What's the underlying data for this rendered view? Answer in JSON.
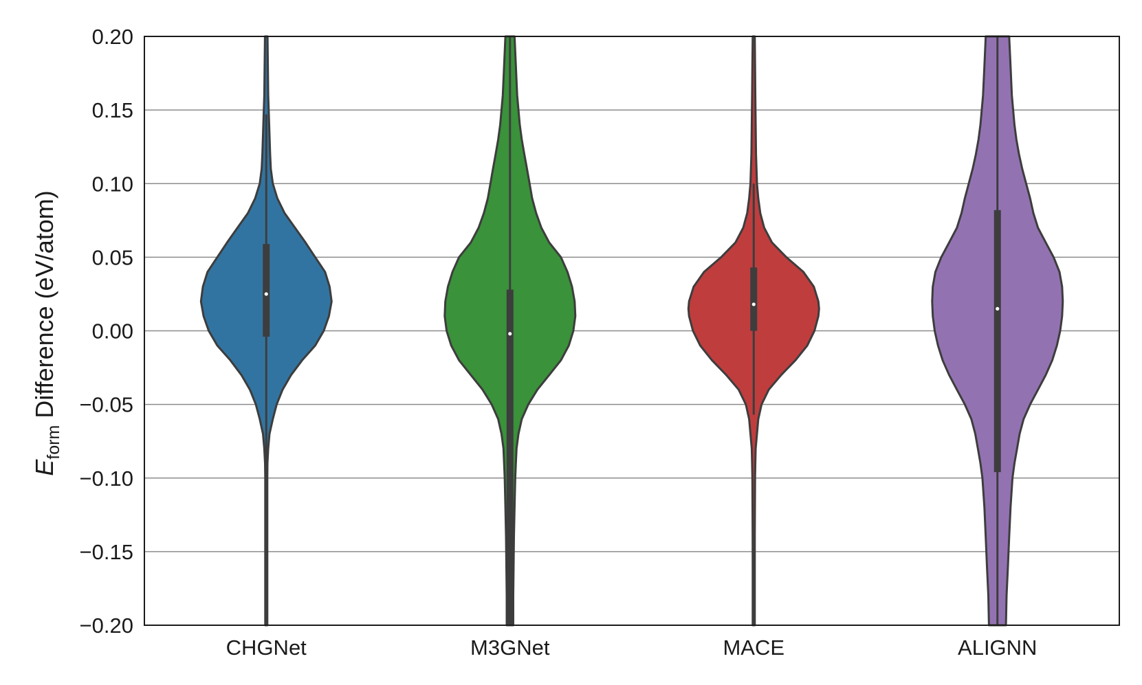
{
  "chart_data": {
    "type": "violin",
    "ylabel_main": "E",
    "ylabel_sub": "form",
    "ylabel_rest": " Difference (eV/atom)",
    "ylim": [
      -0.2,
      0.2
    ],
    "yticks": [
      -0.2,
      -0.15,
      -0.1,
      -0.05,
      0.0,
      0.05,
      0.1,
      0.15,
      0.2
    ],
    "ytick_labels": [
      "−0.20",
      "−0.15",
      "−0.10",
      "−0.05",
      "0.00",
      "0.05",
      "0.10",
      "0.15",
      "0.20"
    ],
    "grid": "horizontal",
    "categories": [
      "CHGNet",
      "M3GNet",
      "MACE",
      "ALIGNN"
    ],
    "series": [
      {
        "category": "CHGNet",
        "color": "#3274a1",
        "median": 0.025,
        "q1": -0.004,
        "q3": 0.059,
        "whisker_low": -0.2,
        "whisker_high": 0.147,
        "density": [
          [
            -0.2,
            0.004
          ],
          [
            -0.18,
            0.005
          ],
          [
            -0.16,
            0.006
          ],
          [
            -0.14,
            0.007
          ],
          [
            -0.12,
            0.009
          ],
          [
            -0.1,
            0.013
          ],
          [
            -0.09,
            0.018
          ],
          [
            -0.08,
            0.03
          ],
          [
            -0.07,
            0.05
          ],
          [
            -0.06,
            0.1
          ],
          [
            -0.05,
            0.16
          ],
          [
            -0.04,
            0.25
          ],
          [
            -0.03,
            0.38
          ],
          [
            -0.02,
            0.55
          ],
          [
            -0.01,
            0.75
          ],
          [
            0.0,
            0.88
          ],
          [
            0.01,
            0.96
          ],
          [
            0.02,
            1.0
          ],
          [
            0.03,
            0.97
          ],
          [
            0.04,
            0.9
          ],
          [
            0.05,
            0.75
          ],
          [
            0.06,
            0.6
          ],
          [
            0.07,
            0.44
          ],
          [
            0.08,
            0.28
          ],
          [
            0.09,
            0.17
          ],
          [
            0.1,
            0.1
          ],
          [
            0.11,
            0.07
          ],
          [
            0.12,
            0.06
          ],
          [
            0.14,
            0.045
          ],
          [
            0.16,
            0.03
          ],
          [
            0.18,
            0.025
          ],
          [
            0.2,
            0.02
          ]
        ]
      },
      {
        "category": "M3GNet",
        "color": "#3a923a",
        "median": -0.002,
        "q1": -0.2,
        "q3": 0.028,
        "whisker_low": -0.2,
        "whisker_high": 0.2,
        "density": [
          [
            -0.2,
            0.05
          ],
          [
            -0.18,
            0.05
          ],
          [
            -0.16,
            0.055
          ],
          [
            -0.14,
            0.06
          ],
          [
            -0.12,
            0.07
          ],
          [
            -0.1,
            0.08
          ],
          [
            -0.09,
            0.09
          ],
          [
            -0.08,
            0.1
          ],
          [
            -0.07,
            0.13
          ],
          [
            -0.06,
            0.18
          ],
          [
            -0.05,
            0.28
          ],
          [
            -0.04,
            0.42
          ],
          [
            -0.03,
            0.6
          ],
          [
            -0.02,
            0.78
          ],
          [
            -0.01,
            0.9
          ],
          [
            0.0,
            0.97
          ],
          [
            0.01,
            1.0
          ],
          [
            0.02,
            0.99
          ],
          [
            0.03,
            0.95
          ],
          [
            0.04,
            0.88
          ],
          [
            0.05,
            0.78
          ],
          [
            0.06,
            0.6
          ],
          [
            0.07,
            0.48
          ],
          [
            0.08,
            0.4
          ],
          [
            0.09,
            0.34
          ],
          [
            0.1,
            0.3
          ],
          [
            0.11,
            0.26
          ],
          [
            0.12,
            0.22
          ],
          [
            0.13,
            0.18
          ],
          [
            0.14,
            0.15
          ],
          [
            0.16,
            0.11
          ],
          [
            0.18,
            0.09
          ],
          [
            0.2,
            0.07
          ]
        ]
      },
      {
        "category": "MACE",
        "color": "#c03d3e",
        "median": 0.018,
        "q1": 0.0,
        "q3": 0.043,
        "whisker_low": -0.057,
        "whisker_high": 0.1,
        "density": [
          [
            -0.2,
            0.015
          ],
          [
            -0.18,
            0.015
          ],
          [
            -0.16,
            0.015
          ],
          [
            -0.14,
            0.016
          ],
          [
            -0.12,
            0.018
          ],
          [
            -0.1,
            0.02
          ],
          [
            -0.09,
            0.025
          ],
          [
            -0.08,
            0.03
          ],
          [
            -0.07,
            0.05
          ],
          [
            -0.06,
            0.07
          ],
          [
            -0.05,
            0.12
          ],
          [
            -0.04,
            0.23
          ],
          [
            -0.03,
            0.42
          ],
          [
            -0.02,
            0.64
          ],
          [
            -0.01,
            0.82
          ],
          [
            0.0,
            0.93
          ],
          [
            0.01,
            0.99
          ],
          [
            0.015,
            1.0
          ],
          [
            0.02,
            0.99
          ],
          [
            0.03,
            0.92
          ],
          [
            0.04,
            0.76
          ],
          [
            0.05,
            0.5
          ],
          [
            0.06,
            0.28
          ],
          [
            0.07,
            0.16
          ],
          [
            0.08,
            0.1
          ],
          [
            0.09,
            0.07
          ],
          [
            0.1,
            0.05
          ],
          [
            0.12,
            0.035
          ],
          [
            0.14,
            0.03
          ],
          [
            0.16,
            0.025
          ],
          [
            0.18,
            0.02
          ],
          [
            0.2,
            0.015
          ]
        ]
      },
      {
        "category": "ALIGNN",
        "color": "#9372b2",
        "median": 0.015,
        "q1": -0.096,
        "q3": 0.082,
        "whisker_low": -0.2,
        "whisker_high": 0.2,
        "density": [
          [
            -0.2,
            0.13
          ],
          [
            -0.18,
            0.14
          ],
          [
            -0.16,
            0.16
          ],
          [
            -0.14,
            0.18
          ],
          [
            -0.12,
            0.2
          ],
          [
            -0.1,
            0.23
          ],
          [
            -0.09,
            0.26
          ],
          [
            -0.08,
            0.3
          ],
          [
            -0.07,
            0.34
          ],
          [
            -0.06,
            0.4
          ],
          [
            -0.05,
            0.5
          ],
          [
            -0.04,
            0.62
          ],
          [
            -0.03,
            0.74
          ],
          [
            -0.02,
            0.84
          ],
          [
            -0.01,
            0.91
          ],
          [
            0.0,
            0.96
          ],
          [
            0.01,
            0.99
          ],
          [
            0.02,
            1.0
          ],
          [
            0.03,
            0.99
          ],
          [
            0.04,
            0.95
          ],
          [
            0.05,
            0.86
          ],
          [
            0.06,
            0.74
          ],
          [
            0.07,
            0.62
          ],
          [
            0.08,
            0.55
          ],
          [
            0.09,
            0.5
          ],
          [
            0.1,
            0.44
          ],
          [
            0.11,
            0.38
          ],
          [
            0.12,
            0.33
          ],
          [
            0.13,
            0.29
          ],
          [
            0.14,
            0.26
          ],
          [
            0.16,
            0.22
          ],
          [
            0.18,
            0.2
          ],
          [
            0.2,
            0.18
          ]
        ]
      }
    ]
  }
}
